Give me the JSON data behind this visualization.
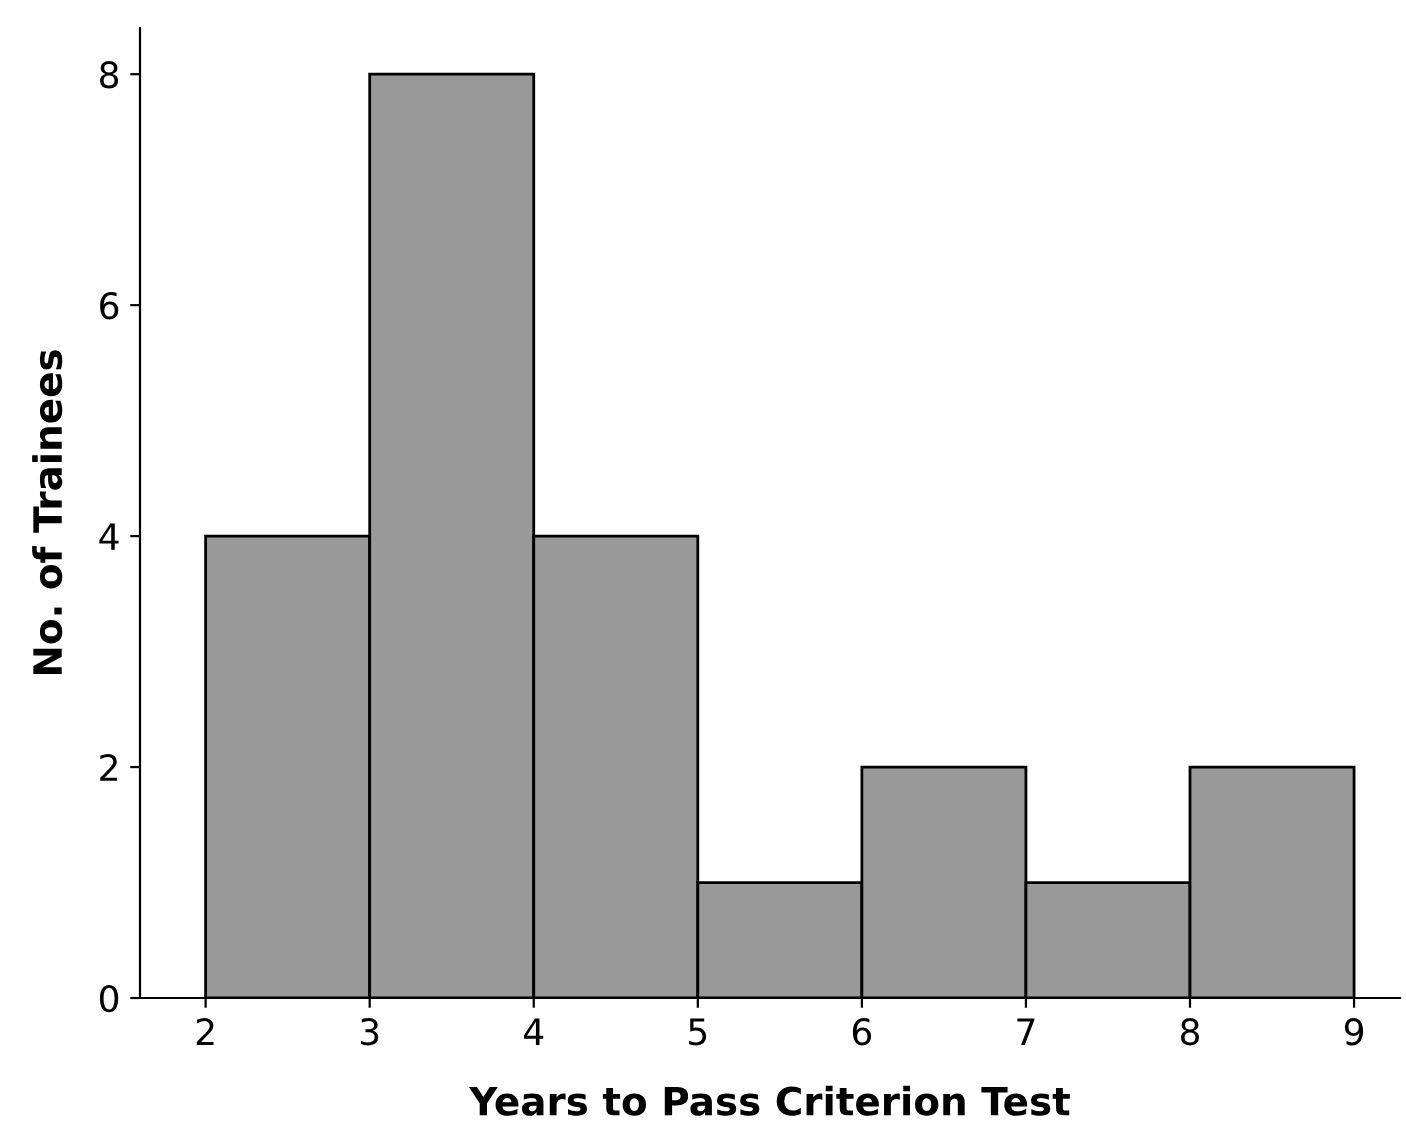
{
  "chart_data": {
    "type": "histogram",
    "xlabel": "Years to Pass Criterion Test",
    "ylabel": "No. of Trainees",
    "bins": [
      2,
      3,
      4,
      5,
      6,
      7,
      8,
      9
    ],
    "values": [
      4,
      8,
      4,
      1,
      2,
      1,
      2
    ],
    "color": "#999999",
    "xlim": [
      1.6,
      9.28
    ],
    "xticks": [
      2,
      3,
      4,
      5,
      6,
      7,
      8,
      9
    ],
    "ylim": [
      0,
      8.4
    ],
    "yticks": [
      0,
      2,
      4,
      6,
      8
    ],
    "grid": false
  }
}
